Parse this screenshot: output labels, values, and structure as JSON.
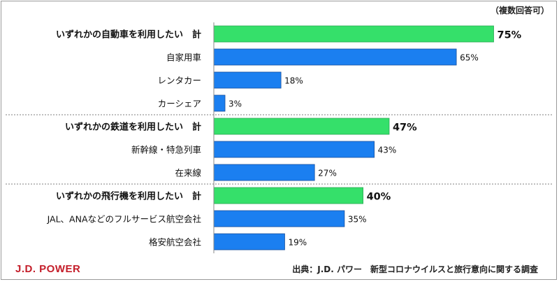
{
  "note": "（複数回答可）",
  "brand": "J.D. POWER",
  "source": "出典：J.D. パワー　新型コロナウイルスと旅行意向に関する調査",
  "colors": {
    "total": "#35e06a",
    "item": "#1b7ff0",
    "bar_edge": "#1a4f9c"
  },
  "chart_data": {
    "type": "bar",
    "orientation": "horizontal",
    "xlim": [
      0,
      100
    ],
    "groups": [
      {
        "total": {
          "label": "いずれかの自動車を利用したい　計",
          "value": 75,
          "value_label": "75%"
        },
        "items": [
          {
            "label": "自家用車",
            "value": 65,
            "value_label": "65%"
          },
          {
            "label": "レンタカー",
            "value": 18,
            "value_label": "18%"
          },
          {
            "label": "カーシェア",
            "value": 3,
            "value_label": "3%"
          }
        ]
      },
      {
        "total": {
          "label": "いずれかの鉄道を利用したい　計",
          "value": 47,
          "value_label": "47%"
        },
        "items": [
          {
            "label": "新幹線・特急列車",
            "value": 43,
            "value_label": "43%"
          },
          {
            "label": "在来線",
            "value": 27,
            "value_label": "27%"
          }
        ]
      },
      {
        "total": {
          "label": "いずれかの飛行機を利用したい　計",
          "value": 40,
          "value_label": "40%"
        },
        "items": [
          {
            "label": "JAL、ANAなどのフルサービス航空会社",
            "value": 35,
            "value_label": "35%"
          },
          {
            "label": "格安航空会社",
            "value": 19,
            "value_label": "19%"
          }
        ]
      }
    ]
  }
}
